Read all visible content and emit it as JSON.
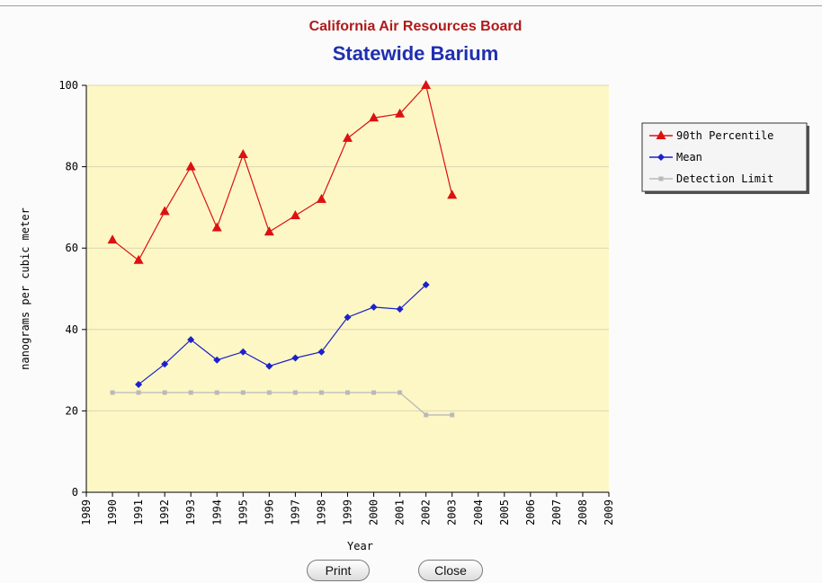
{
  "header": {
    "title": "California Air Resources Board",
    "subtitle": "Statewide Barium"
  },
  "buttons": {
    "print_label": "Print",
    "close_label": "Close"
  },
  "colors": {
    "plot_bg": "#fdf7c6",
    "series_90th": "#dd1111",
    "series_mean": "#1a22c8",
    "series_detection": "#b9b9b9",
    "title_red": "#b01a1a",
    "title_blue": "#1f2fb0"
  },
  "chart_data": {
    "type": "line",
    "title": "California Air Resources Board",
    "subtitle": "Statewide Barium",
    "xlabel": "Year",
    "ylabel": "nanograms per cubic meter",
    "xlim": [
      1989,
      2009
    ],
    "ylim": [
      0,
      100
    ],
    "x_ticks": [
      1989,
      1990,
      1991,
      1992,
      1993,
      1994,
      1995,
      1996,
      1997,
      1998,
      1999,
      2000,
      2001,
      2002,
      2003,
      2004,
      2005,
      2006,
      2007,
      2008,
      2009
    ],
    "y_ticks": [
      0,
      20,
      40,
      60,
      80,
      100
    ],
    "grid": "horizontal",
    "legend_position": "right",
    "series": [
      {
        "name": "90th Percentile",
        "marker": "triangle",
        "color": "#dd1111",
        "x": [
          1990,
          1991,
          1992,
          1993,
          1994,
          1995,
          1996,
          1997,
          1998,
          1999,
          2000,
          2001,
          2002,
          2003
        ],
        "values": [
          62,
          57,
          69,
          80,
          65,
          83,
          64,
          68,
          72,
          87,
          92,
          93,
          100,
          73
        ]
      },
      {
        "name": "Mean",
        "marker": "diamond",
        "color": "#1a22c8",
        "x": [
          1991,
          1992,
          1993,
          1994,
          1995,
          1996,
          1997,
          1998,
          1999,
          2000,
          2001,
          2002
        ],
        "values": [
          26.5,
          31.5,
          37.5,
          32.5,
          34.5,
          31,
          33,
          34.5,
          43,
          45.5,
          45,
          51
        ]
      },
      {
        "name": "Detection Limit",
        "marker": "square",
        "color": "#b9b9b9",
        "x": [
          1990,
          1991,
          1992,
          1993,
          1994,
          1995,
          1996,
          1997,
          1998,
          1999,
          2000,
          2001,
          2002,
          2003
        ],
        "values": [
          24.5,
          24.5,
          24.5,
          24.5,
          24.5,
          24.5,
          24.5,
          24.5,
          24.5,
          24.5,
          24.5,
          24.5,
          19,
          19
        ]
      }
    ]
  }
}
